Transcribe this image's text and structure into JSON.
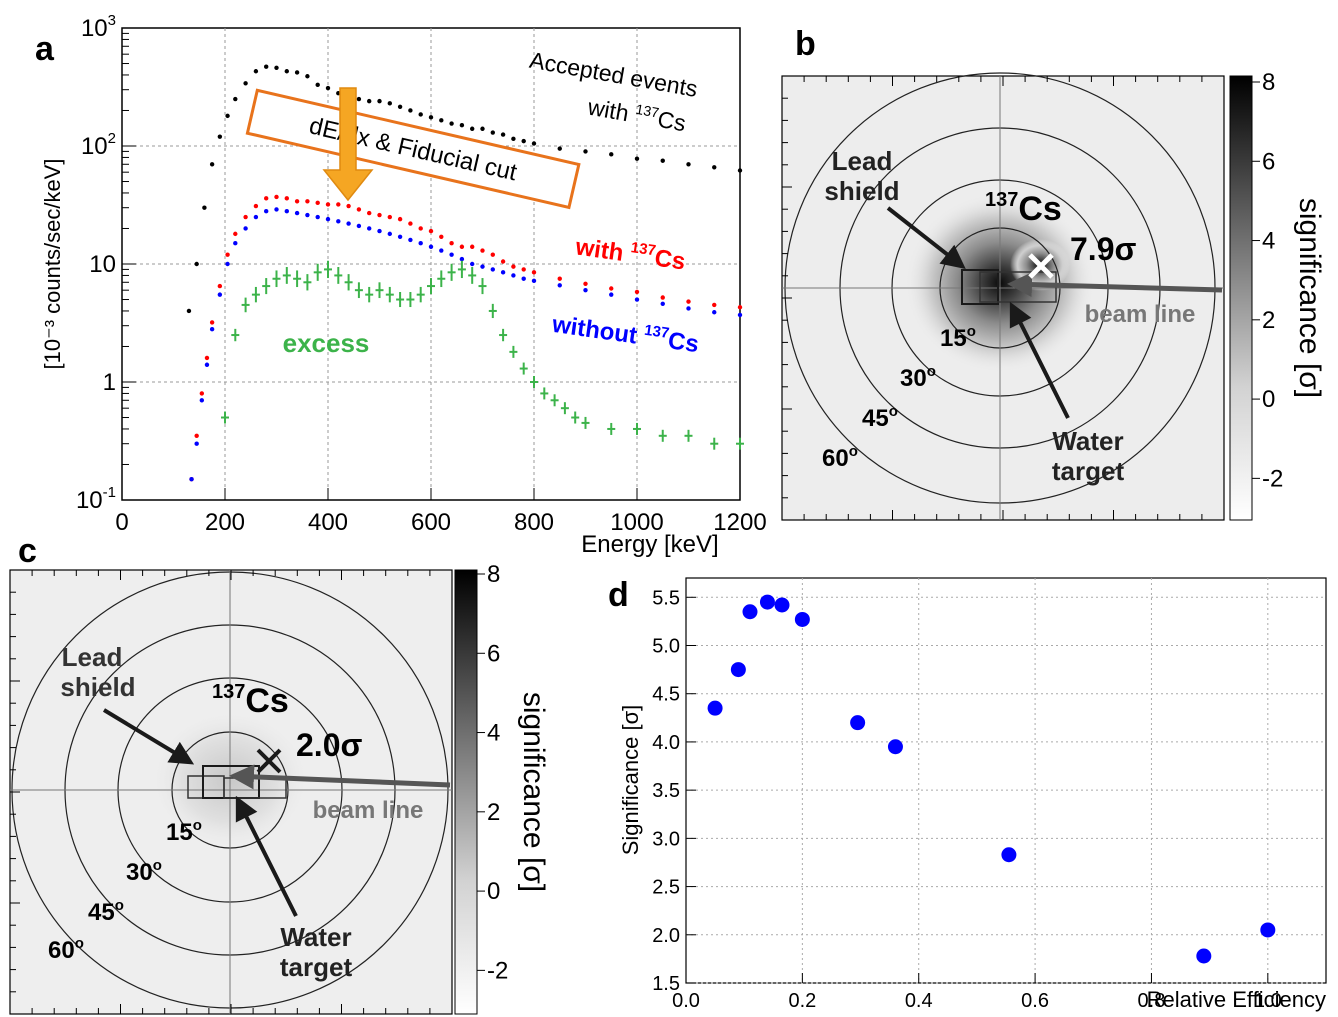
{
  "panel_labels": {
    "a": "a",
    "b": "b",
    "c": "c",
    "d": "d"
  },
  "colors": {
    "accepted": "#000000",
    "with_cs": "#ff0000",
    "without_cs": "#0000ff",
    "excess": "#3cb34a",
    "cut_box": "#e8731c",
    "cut_arrow": "#f5a623",
    "scatter": "#0000ff"
  },
  "chart_data": [
    {
      "panel": "a",
      "type": "line",
      "xlabel": "Energy [keV]",
      "ylabel": "[10⁻³ counts/sec/keV]",
      "xlim": [
        0,
        1200
      ],
      "ylim": [
        0.1,
        1000
      ],
      "yscale": "log",
      "grid": true,
      "x_ticks": [
        "0",
        "200",
        "400",
        "600",
        "800",
        "1000",
        "1200"
      ],
      "y_ticks": [
        {
          "base": "10",
          "exp": "-1",
          "value": 0.1
        },
        {
          "base": "1",
          "exp": "",
          "value": 1
        },
        {
          "base": "10",
          "exp": "",
          "value": 10
        },
        {
          "base": "10",
          "exp": "2",
          "value": 100
        },
        {
          "base": "10",
          "exp": "3",
          "value": 1000
        }
      ],
      "series": [
        {
          "name": "Accepted events with ¹³⁷Cs",
          "label_line1": "Accepted events",
          "label_line2_pre": "with ",
          "label_sup": "137",
          "label_post": "Cs",
          "x": [
            130,
            145,
            160,
            175,
            190,
            205,
            220,
            240,
            260,
            280,
            300,
            320,
            340,
            360,
            380,
            400,
            420,
            440,
            460,
            480,
            500,
            520,
            540,
            560,
            580,
            600,
            620,
            640,
            660,
            680,
            700,
            720,
            740,
            760,
            780,
            800,
            850,
            900,
            950,
            1000,
            1050,
            1100,
            1150,
            1200
          ],
          "y": [
            4,
            10,
            30,
            70,
            120,
            180,
            250,
            340,
            430,
            470,
            460,
            430,
            420,
            390,
            330,
            310,
            280,
            260,
            250,
            240,
            240,
            230,
            215,
            200,
            185,
            175,
            165,
            155,
            150,
            140,
            140,
            130,
            125,
            115,
            110,
            105,
            95,
            90,
            85,
            78,
            75,
            70,
            66,
            62
          ]
        },
        {
          "name": "with ¹³⁷Cs",
          "label_pre": "with ",
          "label_sup": "137",
          "label_post": "Cs",
          "x": [
            135,
            145,
            155,
            165,
            175,
            190,
            205,
            220,
            240,
            260,
            280,
            300,
            320,
            340,
            360,
            380,
            400,
            420,
            440,
            460,
            480,
            500,
            520,
            540,
            560,
            580,
            600,
            620,
            640,
            660,
            680,
            700,
            720,
            740,
            760,
            780,
            800,
            850,
            900,
            950,
            1000,
            1050,
            1100,
            1150,
            1200
          ],
          "y": [
            0.15,
            0.35,
            0.8,
            1.6,
            3.2,
            6.5,
            12,
            18,
            25,
            31,
            36,
            37,
            36,
            34,
            34,
            33,
            32,
            32,
            31,
            29,
            27,
            26,
            25,
            24,
            22,
            20,
            19,
            17,
            15,
            14,
            14,
            13,
            12,
            10.5,
            9.5,
            9,
            8.5,
            7.5,
            6.8,
            6.2,
            5.8,
            5.2,
            4.8,
            4.5,
            4.3
          ]
        },
        {
          "name": "without ¹³⁷Cs",
          "label_pre": "without ",
          "label_sup": "137",
          "label_post": "Cs",
          "x": [
            135,
            145,
            155,
            165,
            175,
            190,
            205,
            220,
            240,
            260,
            280,
            300,
            320,
            340,
            360,
            380,
            400,
            420,
            440,
            460,
            480,
            500,
            520,
            540,
            560,
            580,
            600,
            620,
            640,
            660,
            680,
            700,
            720,
            740,
            760,
            780,
            800,
            850,
            900,
            950,
            1000,
            1050,
            1100,
            1150,
            1200
          ],
          "y": [
            0.15,
            0.3,
            0.7,
            1.4,
            2.8,
            5.5,
            10,
            15,
            20,
            25,
            28,
            29,
            28,
            27,
            26,
            25,
            24,
            23,
            22,
            21,
            20,
            19,
            18,
            17,
            16,
            15,
            14,
            13,
            12,
            11,
            10,
            9.5,
            9,
            8.5,
            8,
            7.5,
            7.2,
            6.6,
            6,
            5.5,
            5,
            4.6,
            4.2,
            3.9,
            3.7
          ]
        },
        {
          "name": "excess",
          "label": "excess",
          "x": [
            200,
            220,
            240,
            260,
            280,
            300,
            320,
            340,
            360,
            380,
            400,
            420,
            440,
            460,
            480,
            500,
            520,
            540,
            560,
            580,
            600,
            620,
            640,
            660,
            680,
            700,
            720,
            740,
            760,
            780,
            800,
            820,
            840,
            860,
            880,
            900,
            950,
            1000,
            1050,
            1100,
            1150,
            1200
          ],
          "y": [
            0.5,
            2.5,
            4.5,
            5.5,
            6.5,
            7.5,
            8,
            7.5,
            7,
            8.5,
            9,
            8,
            7,
            6,
            5.5,
            6,
            5.5,
            5,
            5,
            5.5,
            6.5,
            7.5,
            8.5,
            9,
            8,
            6.5,
            4,
            2.5,
            1.8,
            1.3,
            1,
            0.8,
            0.7,
            0.6,
            0.5,
            0.45,
            0.4,
            0.4,
            0.35,
            0.35,
            0.3,
            0.3
          ]
        }
      ],
      "annotation": {
        "text": "dE/dx & Fiducial cut"
      }
    },
    {
      "panel": "d",
      "type": "scatter",
      "xlabel": "Relative Efficiency",
      "ylabel": "Significance [σ]",
      "xlim": [
        0.0,
        1.1
      ],
      "ylim": [
        1.5,
        5.7
      ],
      "grid": true,
      "x_ticks": [
        "0.0",
        "0.2",
        "0.4",
        "0.6",
        "0.8",
        "1.0"
      ],
      "y_ticks": [
        "1.5",
        "2.0",
        "2.5",
        "3.0",
        "3.5",
        "4.0",
        "4.5",
        "5.0",
        "5.5"
      ],
      "x": [
        0.05,
        0.09,
        0.11,
        0.14,
        0.165,
        0.2,
        0.295,
        0.36,
        0.555,
        0.89,
        1.0
      ],
      "y": [
        4.35,
        4.75,
        5.35,
        5.45,
        5.42,
        5.27,
        4.2,
        3.95,
        2.83,
        1.78,
        2.05
      ]
    }
  ],
  "map_b": {
    "source_label": "Cs",
    "source_sup": "137",
    "significance": "7.9σ",
    "lead_line1": "Lead",
    "lead_line2": "shield",
    "water_line1": "Water",
    "water_line2": "target",
    "beam": "beam line",
    "rings": [
      "15",
      "30",
      "45",
      "60"
    ],
    "degree": "o",
    "colorbar_label": "significance [σ]",
    "colorbar_ticks": [
      "8",
      "6",
      "4",
      "2",
      "0",
      "-2"
    ]
  },
  "map_c": {
    "source_label": "Cs",
    "source_sup": "137",
    "significance": "2.0σ",
    "lead_line1": "Lead",
    "lead_line2": "shield",
    "water_line1": "Water",
    "water_line2": "target",
    "beam": "beam line",
    "rings": [
      "15",
      "30",
      "45",
      "60"
    ],
    "degree": "o",
    "colorbar_label": "significance [σ]",
    "colorbar_ticks": [
      "8",
      "6",
      "4",
      "2",
      "0",
      "-2"
    ]
  }
}
